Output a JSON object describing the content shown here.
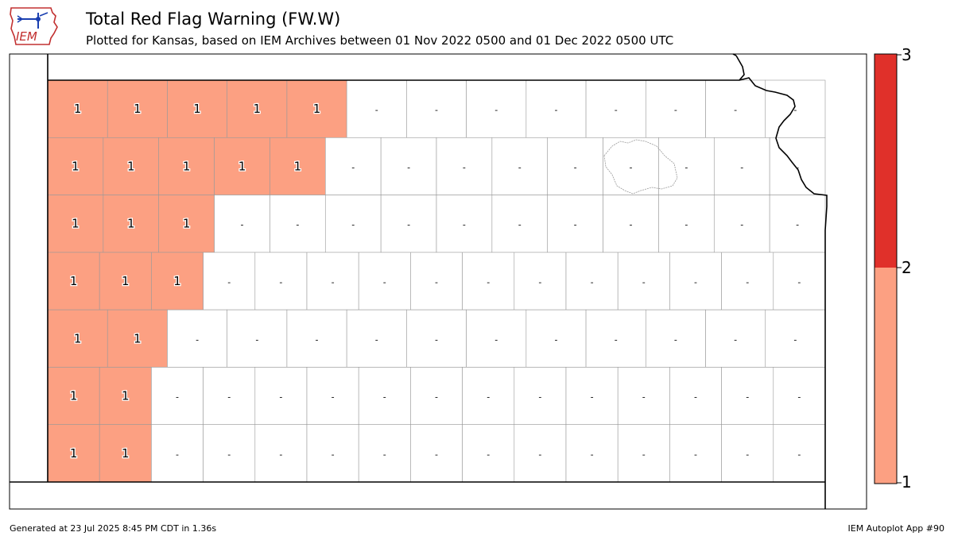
{
  "header": {
    "title": "Total Red Flag Warning (FW.W)",
    "subtitle": "Plotted for Kansas, based on IEM Archives  between 01 Nov 2022 0500 and 01 Dec 2022 0500 UTC",
    "logo_text": "IEM"
  },
  "legend": {
    "ticks": [
      "1",
      "2",
      "3"
    ],
    "bands": [
      {
        "from": 1,
        "to": 2,
        "color": "#fca082"
      },
      {
        "from": 2,
        "to": 3,
        "color": "#e0302a"
      }
    ]
  },
  "map": {
    "fill_color": "#fca082",
    "county_edge_color": "#999999",
    "border_color": "#000000",
    "cell_rows": [
      [
        "1",
        "1",
        "1",
        "1",
        "1",
        "-",
        "-",
        "-",
        "-",
        "-",
        "-",
        "-",
        "-"
      ],
      [
        "1",
        "1",
        "1",
        "1",
        "1",
        "-",
        "-",
        "-",
        "-",
        "-",
        "-",
        "-",
        "-",
        "-"
      ],
      [
        "1",
        "1",
        "1",
        "-",
        "-",
        "-",
        "-",
        "-",
        "-",
        "-",
        "-",
        "-",
        "-",
        "-"
      ],
      [
        "1",
        "1",
        "1",
        "-",
        "-",
        "-",
        "-",
        "-",
        "-",
        "-",
        "-",
        "-",
        "-",
        "-",
        "-"
      ],
      [
        "1",
        "1",
        "-",
        "-",
        "-",
        "-",
        "-",
        "-",
        "-",
        "-",
        "-",
        "-",
        "-"
      ],
      [
        "1",
        "1",
        "-",
        "-",
        "-",
        "-",
        "-",
        "-",
        "-",
        "-",
        "-",
        "-",
        "-",
        "-",
        "-"
      ],
      [
        "1",
        "1",
        "-",
        "-",
        "-",
        "-",
        "-",
        "-",
        "-",
        "-",
        "-",
        "-",
        "-",
        "-",
        "-"
      ]
    ]
  },
  "footer": {
    "generated": "Generated at 23 Jul 2025 8:45 PM CDT in 1.36s",
    "app": "IEM Autoplot App #90"
  }
}
